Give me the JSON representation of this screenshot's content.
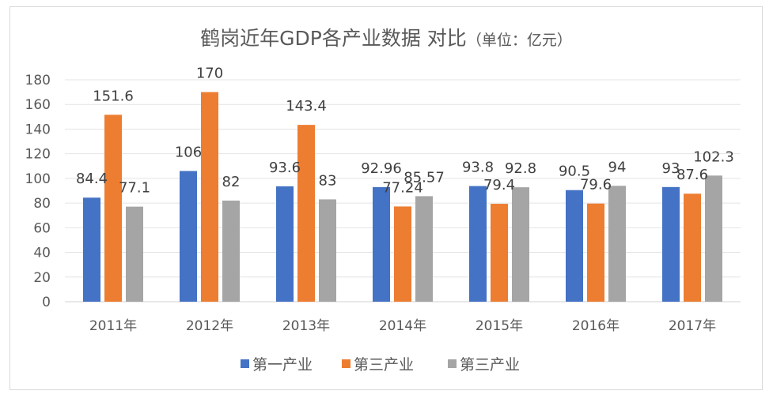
{
  "chart_data": {
    "type": "bar",
    "title": "鹤岗近年GDP各产业数据 对比",
    "subtitle": "（单位：亿元）",
    "xlabel": "",
    "ylabel": "",
    "ylim": [
      0,
      180
    ],
    "yticks": [
      0,
      20,
      40,
      60,
      80,
      100,
      120,
      140,
      160,
      180
    ],
    "grid": true,
    "legend_position": "bottom",
    "categories": [
      "2011年",
      "2012年",
      "2013年",
      "2014年",
      "2015年",
      "2016年",
      "2017年"
    ],
    "series": [
      {
        "name": "第一产业",
        "color": "#4472c4",
        "values": [
          84.4,
          106,
          93.6,
          92.96,
          93.8,
          90.5,
          93
        ],
        "labels": [
          "84.4",
          "106",
          "93.6",
          "92.96",
          "93.8",
          "90.5",
          "93"
        ]
      },
      {
        "name": "第三产业",
        "color": "#ed7d31",
        "values": [
          151.6,
          170,
          143.4,
          77.24,
          79.4,
          79.6,
          87.6
        ],
        "labels": [
          "151.6",
          "170",
          "143.4",
          "77.24",
          "79.4",
          "79.6",
          "87.6"
        ]
      },
      {
        "name": "第三产业",
        "color": "#a5a5a5",
        "values": [
          77.1,
          82,
          83,
          85.57,
          92.8,
          94,
          102.3
        ],
        "labels": [
          "77.1",
          "82",
          "83",
          "85.57",
          "92.8",
          "94",
          "102.3"
        ]
      }
    ]
  }
}
